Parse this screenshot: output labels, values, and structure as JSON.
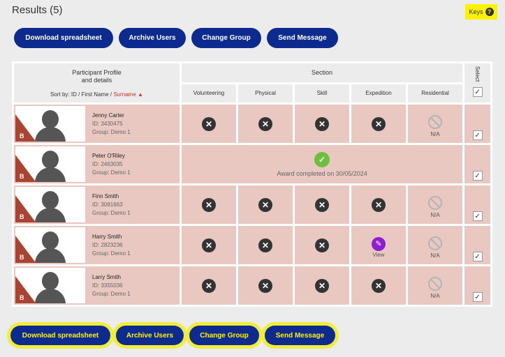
{
  "title": "Results (5)",
  "keys_label": "Keys",
  "keys_icon": "?",
  "buttons": {
    "download": "Download spreadsheet",
    "archive": "Archive Users",
    "change_group": "Change Group",
    "send_message": "Send Message"
  },
  "table": {
    "profile_header_line1": "Participant Profile",
    "profile_header_line2": "and details",
    "sort_prefix": "Sort by:",
    "sort_id": "ID",
    "sort_sep1": " / ",
    "sort_first": "First Name",
    "sort_sep2": " / ",
    "sort_surname": "Surname ▲",
    "section_header": "Section",
    "select_header": "Select",
    "columns": [
      "Volunteering",
      "Physical",
      "Skill",
      "Expedition",
      "Residential"
    ],
    "na_label": "N/A",
    "view_label": "View",
    "award_text": "Award completed on 30/05/2024",
    "badge_letter": "B",
    "rows": [
      {
        "name": "Jenny Carter",
        "id": "ID: 3430475",
        "group": "Group: Demo 1"
      },
      {
        "name": "Peter O'Riley",
        "id": "ID: 2463035",
        "group": "Group: Demo 1"
      },
      {
        "name": "Finn Smith",
        "id": "ID: 3081663",
        "group": "Group: Demo 1"
      },
      {
        "name": "Harry Smith",
        "id": "ID: 2823236",
        "group": "Group: Demo 1"
      },
      {
        "name": "Larry Smith",
        "id": "ID: 3355036",
        "group": "Group: Demo 1"
      }
    ]
  },
  "colors": {
    "button_bg": "#0d2b8e",
    "highlight": "#fff200",
    "row_bg": "#e8c8c0",
    "pending_icon": "#333333",
    "edit_icon": "#8e1fd0",
    "complete_icon": "#6fbf3f",
    "badge": "#a94432"
  },
  "icons": {
    "pending": "close-circle-icon",
    "na": "not-applicable-icon",
    "edit": "pencil-icon",
    "complete": "check-circle-icon",
    "checkbox": "checkmark-icon"
  }
}
